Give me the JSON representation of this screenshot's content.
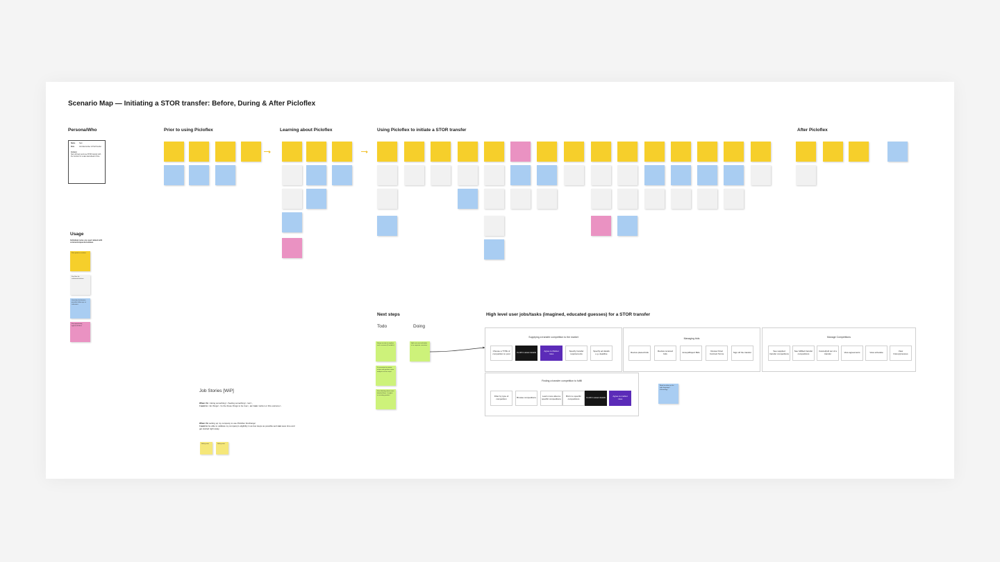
{
  "title": "Scenario Map — Initiating a STOR transfer: Before, During & After Picloflex",
  "sections": {
    "persona": "Persona/Who",
    "prior": "Prior to using Picloflex",
    "learning": "Learning about Picloflex",
    "using": "Using Picloflex to initiate a STOR transfer",
    "after": "After Picloflex",
    "usage": "Usage",
    "next_steps": "Next steps",
    "high_level": "High level user jobs/tasks (imagined, educated guesses) for a STOR transfer",
    "job_stories": "Job Stories [WiP]"
  },
  "persona_card": {
    "rows": [
      {
        "k": "Name",
        "v": "Sam"
      },
      {
        "k": "Role",
        "v": "Job title/number of Pal Provider"
      },
      {
        "k": "Context",
        "v": "Sam will learn and use STOR transfer with the function for a sale deal ahead of time"
      }
    ]
  },
  "usage": {
    "note": "Individual notes are used related with comments/questions/ideas",
    "stickies": [
      "Pain points or actions",
      "Key flow for comments/actions",
      "Questions/unknowns, possible follow-ups or unknowns",
      "Key opportunity, approach/ideas"
    ]
  },
  "next": {
    "todo_label": "Todo",
    "doing_label": "Doing",
    "todo": [
      "Setup session to explore each scenario (3 models)",
      "If in-session to review, action and perform some analysis on the script",
      "Start thinking about more detailed flows / insights on existing product"
    ],
    "doing": [
      "Split out core tasks/jobs in to separate scenarios"
    ]
  },
  "panels": {
    "supplying": {
      "title": "Supplying a transfer competition to the market",
      "tasks": [
        "Choose a TYPE of competition to post",
        "Confirm asset details",
        "Agree to Market rules",
        "Specify transfer requirements",
        "Specify ad details e.g. deadline"
      ]
    },
    "managing_bids": {
      "title": "Managing bids",
      "tasks": [
        "Review placed bids",
        "Review received bids",
        "Accept/Reject Bids",
        "Review Final Contract Terms",
        "Sign off the transfer"
      ]
    },
    "managing_comp": {
      "title": "Manage Competitions",
      "tasks": [
        "See supplied transfer competitions",
        "See fulfilled transfer competitions",
        "Cancel/pull out of a transfer",
        "View agreements",
        "View schedule",
        "View history/previous"
      ]
    },
    "finding": {
      "title": "Finding a transfer competition to fulfill",
      "tasks": [
        "Filter by type of competition",
        "Browse competitions",
        "Learn more about a specific competitions",
        "Bid in to specific competitions",
        "Confirm asset details",
        "Agree to market rules"
      ]
    },
    "side_note": "Need to refine on the right language / terminology"
  },
  "job_stories": [
    {
      "when": "When I'm",
      "a": " <doing something> <feeling something> <etc>,",
      "want": "I want to",
      "b": " <do things> <to the these things to be true>, ",
      "so": "so I can",
      "c": " <action or this outcome>."
    },
    {
      "when": "When I'm",
      "a": " setting up my company to use Picloflex 'Exchange'",
      "want": "I want to",
      "b": " be able to validate my company's eligibility in as few steps as possible ",
      "so": "so I can",
      "c": " save time and get started right away."
    }
  ],
  "job_stickies": [
    "Sticky note",
    "Sticky note"
  ],
  "colors": {
    "yellow": "#f6cf2b",
    "blue": "#a9cdf2",
    "white": "#f1f1f1",
    "pink": "#ea92c2",
    "green": "#cdf27a",
    "dark_task": "#161616",
    "purple_task": "#5b2bb8",
    "arrow": "#f1c232"
  }
}
